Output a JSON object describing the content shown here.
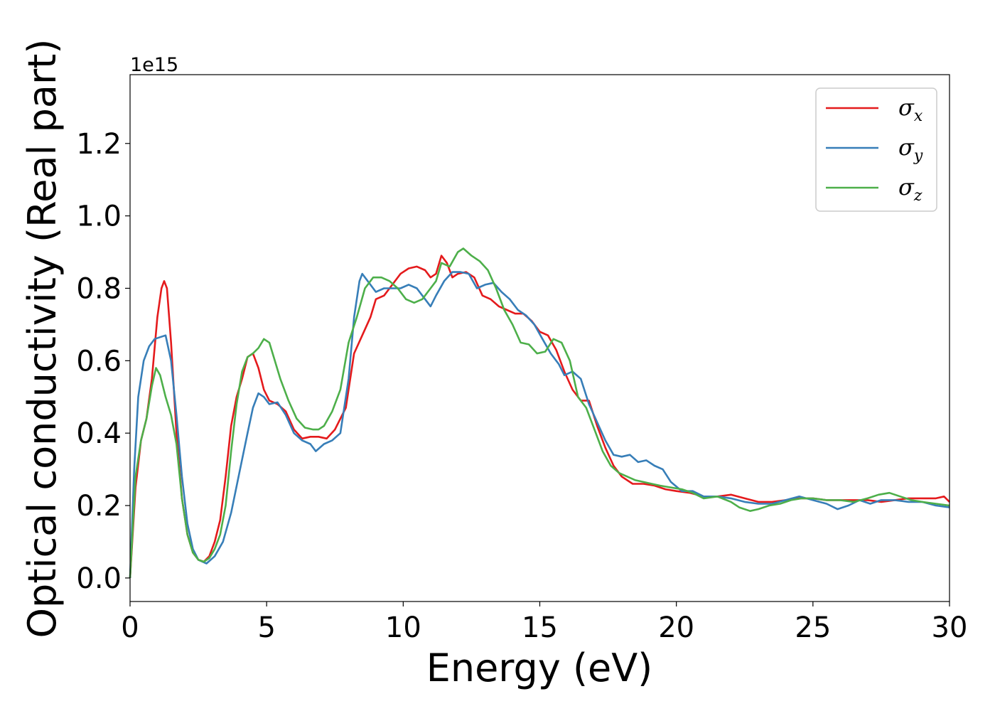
{
  "chart_data": {
    "type": "line",
    "title": "",
    "xlabel": "Energy (eV)",
    "ylabel": "Optical conductivity (Real part)",
    "offset_text": "1e15",
    "xlim": [
      0,
      30
    ],
    "ylim": [
      -0.065,
      1.39
    ],
    "x_ticks": [
      0,
      5,
      10,
      15,
      20,
      25,
      30
    ],
    "y_ticks": [
      0.0,
      0.2,
      0.4,
      0.6,
      0.8,
      1.0,
      1.2
    ],
    "x_tick_labels": [
      "0",
      "5",
      "10",
      "15",
      "20",
      "25",
      "30"
    ],
    "y_tick_labels": [
      "0.0",
      "0.2",
      "0.4",
      "0.6",
      "0.8",
      "1.0",
      "1.2"
    ],
    "grid": false,
    "legend_position": "top-right",
    "series": [
      {
        "name": "σx",
        "symbol": "σ",
        "subscript": "x",
        "color": "#e41a1c",
        "points": [
          [
            0,
            0.0
          ],
          [
            0.2,
            0.25
          ],
          [
            0.4,
            0.38
          ],
          [
            0.6,
            0.44
          ],
          [
            0.8,
            0.55
          ],
          [
            1.0,
            0.72
          ],
          [
            1.15,
            0.8
          ],
          [
            1.25,
            0.82
          ],
          [
            1.35,
            0.8
          ],
          [
            1.5,
            0.65
          ],
          [
            1.7,
            0.4
          ],
          [
            1.9,
            0.22
          ],
          [
            2.1,
            0.12
          ],
          [
            2.3,
            0.07
          ],
          [
            2.5,
            0.05
          ],
          [
            2.7,
            0.045
          ],
          [
            2.9,
            0.06
          ],
          [
            3.1,
            0.1
          ],
          [
            3.3,
            0.16
          ],
          [
            3.5,
            0.28
          ],
          [
            3.7,
            0.42
          ],
          [
            3.9,
            0.5
          ],
          [
            4.1,
            0.55
          ],
          [
            4.3,
            0.61
          ],
          [
            4.5,
            0.62
          ],
          [
            4.7,
            0.58
          ],
          [
            4.9,
            0.52
          ],
          [
            5.1,
            0.49
          ],
          [
            5.4,
            0.48
          ],
          [
            5.7,
            0.46
          ],
          [
            6.0,
            0.41
          ],
          [
            6.3,
            0.385
          ],
          [
            6.6,
            0.39
          ],
          [
            6.9,
            0.39
          ],
          [
            7.2,
            0.385
          ],
          [
            7.5,
            0.41
          ],
          [
            7.9,
            0.47
          ],
          [
            8.2,
            0.62
          ],
          [
            8.5,
            0.67
          ],
          [
            8.8,
            0.72
          ],
          [
            9.0,
            0.77
          ],
          [
            9.3,
            0.78
          ],
          [
            9.6,
            0.81
          ],
          [
            9.9,
            0.84
          ],
          [
            10.2,
            0.855
          ],
          [
            10.5,
            0.86
          ],
          [
            10.8,
            0.85
          ],
          [
            11.0,
            0.83
          ],
          [
            11.2,
            0.84
          ],
          [
            11.4,
            0.89
          ],
          [
            11.6,
            0.87
          ],
          [
            11.8,
            0.83
          ],
          [
            12.0,
            0.84
          ],
          [
            12.3,
            0.845
          ],
          [
            12.6,
            0.83
          ],
          [
            12.9,
            0.78
          ],
          [
            13.2,
            0.77
          ],
          [
            13.5,
            0.75
          ],
          [
            13.8,
            0.74
          ],
          [
            14.1,
            0.73
          ],
          [
            14.4,
            0.73
          ],
          [
            14.7,
            0.71
          ],
          [
            15.0,
            0.68
          ],
          [
            15.3,
            0.67
          ],
          [
            15.6,
            0.63
          ],
          [
            15.9,
            0.57
          ],
          [
            16.2,
            0.52
          ],
          [
            16.5,
            0.49
          ],
          [
            16.8,
            0.49
          ],
          [
            17.1,
            0.42
          ],
          [
            17.4,
            0.36
          ],
          [
            17.7,
            0.31
          ],
          [
            18.0,
            0.28
          ],
          [
            18.4,
            0.26
          ],
          [
            18.8,
            0.26
          ],
          [
            19.2,
            0.255
          ],
          [
            19.6,
            0.245
          ],
          [
            20.0,
            0.24
          ],
          [
            20.5,
            0.235
          ],
          [
            21.0,
            0.225
          ],
          [
            21.5,
            0.225
          ],
          [
            22.0,
            0.23
          ],
          [
            22.5,
            0.22
          ],
          [
            23.0,
            0.21
          ],
          [
            23.5,
            0.21
          ],
          [
            24.0,
            0.215
          ],
          [
            24.5,
            0.22
          ],
          [
            25.0,
            0.22
          ],
          [
            25.5,
            0.215
          ],
          [
            26.0,
            0.215
          ],
          [
            26.5,
            0.215
          ],
          [
            27.0,
            0.215
          ],
          [
            27.5,
            0.21
          ],
          [
            28.0,
            0.215
          ],
          [
            28.5,
            0.22
          ],
          [
            29.0,
            0.22
          ],
          [
            29.5,
            0.22
          ],
          [
            29.8,
            0.225
          ],
          [
            30.0,
            0.21
          ]
        ]
      },
      {
        "name": "σy",
        "symbol": "σ",
        "subscript": "y",
        "color": "#377eb8",
        "points": [
          [
            0,
            0.0
          ],
          [
            0.15,
            0.3
          ],
          [
            0.3,
            0.5
          ],
          [
            0.5,
            0.6
          ],
          [
            0.7,
            0.64
          ],
          [
            0.9,
            0.66
          ],
          [
            1.1,
            0.665
          ],
          [
            1.3,
            0.67
          ],
          [
            1.5,
            0.6
          ],
          [
            1.7,
            0.45
          ],
          [
            1.9,
            0.28
          ],
          [
            2.1,
            0.15
          ],
          [
            2.3,
            0.08
          ],
          [
            2.5,
            0.05
          ],
          [
            2.8,
            0.04
          ],
          [
            3.1,
            0.06
          ],
          [
            3.4,
            0.1
          ],
          [
            3.7,
            0.18
          ],
          [
            4.0,
            0.29
          ],
          [
            4.3,
            0.4
          ],
          [
            4.5,
            0.47
          ],
          [
            4.7,
            0.51
          ],
          [
            4.9,
            0.5
          ],
          [
            5.1,
            0.48
          ],
          [
            5.4,
            0.485
          ],
          [
            5.7,
            0.45
          ],
          [
            6.0,
            0.4
          ],
          [
            6.3,
            0.38
          ],
          [
            6.6,
            0.37
          ],
          [
            6.8,
            0.35
          ],
          [
            7.1,
            0.37
          ],
          [
            7.4,
            0.38
          ],
          [
            7.7,
            0.4
          ],
          [
            8.0,
            0.55
          ],
          [
            8.2,
            0.72
          ],
          [
            8.4,
            0.82
          ],
          [
            8.5,
            0.84
          ],
          [
            8.7,
            0.82
          ],
          [
            9.0,
            0.79
          ],
          [
            9.3,
            0.8
          ],
          [
            9.6,
            0.8
          ],
          [
            9.9,
            0.8
          ],
          [
            10.2,
            0.81
          ],
          [
            10.5,
            0.8
          ],
          [
            10.8,
            0.77
          ],
          [
            11.0,
            0.75
          ],
          [
            11.2,
            0.78
          ],
          [
            11.5,
            0.82
          ],
          [
            11.8,
            0.845
          ],
          [
            12.1,
            0.845
          ],
          [
            12.4,
            0.84
          ],
          [
            12.7,
            0.8
          ],
          [
            13.0,
            0.81
          ],
          [
            13.3,
            0.815
          ],
          [
            13.6,
            0.79
          ],
          [
            13.9,
            0.77
          ],
          [
            14.2,
            0.74
          ],
          [
            14.5,
            0.725
          ],
          [
            14.8,
            0.7
          ],
          [
            15.1,
            0.66
          ],
          [
            15.4,
            0.62
          ],
          [
            15.7,
            0.59
          ],
          [
            15.9,
            0.56
          ],
          [
            16.2,
            0.57
          ],
          [
            16.5,
            0.55
          ],
          [
            16.8,
            0.48
          ],
          [
            17.1,
            0.43
          ],
          [
            17.4,
            0.38
          ],
          [
            17.7,
            0.34
          ],
          [
            18.0,
            0.335
          ],
          [
            18.3,
            0.34
          ],
          [
            18.6,
            0.32
          ],
          [
            18.9,
            0.325
          ],
          [
            19.2,
            0.31
          ],
          [
            19.5,
            0.3
          ],
          [
            19.8,
            0.265
          ],
          [
            20.2,
            0.24
          ],
          [
            20.6,
            0.24
          ],
          [
            21.0,
            0.225
          ],
          [
            21.5,
            0.225
          ],
          [
            22.0,
            0.22
          ],
          [
            22.5,
            0.21
          ],
          [
            23.0,
            0.205
          ],
          [
            23.5,
            0.205
          ],
          [
            24.0,
            0.215
          ],
          [
            24.5,
            0.225
          ],
          [
            25.0,
            0.215
          ],
          [
            25.5,
            0.205
          ],
          [
            25.9,
            0.19
          ],
          [
            26.3,
            0.2
          ],
          [
            26.7,
            0.215
          ],
          [
            27.1,
            0.205
          ],
          [
            27.5,
            0.215
          ],
          [
            28.0,
            0.215
          ],
          [
            28.5,
            0.21
          ],
          [
            29.0,
            0.21
          ],
          [
            29.5,
            0.2
          ],
          [
            30.0,
            0.195
          ]
        ]
      },
      {
        "name": "σz",
        "symbol": "σ",
        "subscript": "z",
        "color": "#4daf4a",
        "points": [
          [
            0,
            0.0
          ],
          [
            0.2,
            0.28
          ],
          [
            0.4,
            0.38
          ],
          [
            0.6,
            0.44
          ],
          [
            0.8,
            0.53
          ],
          [
            0.95,
            0.58
          ],
          [
            1.1,
            0.56
          ],
          [
            1.3,
            0.5
          ],
          [
            1.5,
            0.45
          ],
          [
            1.7,
            0.37
          ],
          [
            1.9,
            0.22
          ],
          [
            2.1,
            0.12
          ],
          [
            2.3,
            0.07
          ],
          [
            2.5,
            0.05
          ],
          [
            2.7,
            0.045
          ],
          [
            2.9,
            0.055
          ],
          [
            3.1,
            0.08
          ],
          [
            3.3,
            0.12
          ],
          [
            3.5,
            0.2
          ],
          [
            3.7,
            0.35
          ],
          [
            3.9,
            0.48
          ],
          [
            4.1,
            0.57
          ],
          [
            4.3,
            0.61
          ],
          [
            4.5,
            0.62
          ],
          [
            4.7,
            0.635
          ],
          [
            4.9,
            0.66
          ],
          [
            5.1,
            0.65
          ],
          [
            5.3,
            0.6
          ],
          [
            5.5,
            0.55
          ],
          [
            5.8,
            0.49
          ],
          [
            6.1,
            0.44
          ],
          [
            6.4,
            0.415
          ],
          [
            6.7,
            0.41
          ],
          [
            6.9,
            0.41
          ],
          [
            7.1,
            0.42
          ],
          [
            7.4,
            0.46
          ],
          [
            7.7,
            0.52
          ],
          [
            8.0,
            0.65
          ],
          [
            8.3,
            0.72
          ],
          [
            8.6,
            0.8
          ],
          [
            8.9,
            0.83
          ],
          [
            9.2,
            0.83
          ],
          [
            9.5,
            0.82
          ],
          [
            9.8,
            0.8
          ],
          [
            10.1,
            0.77
          ],
          [
            10.4,
            0.76
          ],
          [
            10.7,
            0.77
          ],
          [
            11.0,
            0.8
          ],
          [
            11.2,
            0.82
          ],
          [
            11.4,
            0.87
          ],
          [
            11.7,
            0.86
          ],
          [
            12.0,
            0.9
          ],
          [
            12.2,
            0.91
          ],
          [
            12.5,
            0.89
          ],
          [
            12.8,
            0.875
          ],
          [
            13.1,
            0.85
          ],
          [
            13.4,
            0.8
          ],
          [
            13.7,
            0.74
          ],
          [
            14.0,
            0.7
          ],
          [
            14.3,
            0.65
          ],
          [
            14.6,
            0.645
          ],
          [
            14.9,
            0.62
          ],
          [
            15.2,
            0.625
          ],
          [
            15.5,
            0.66
          ],
          [
            15.8,
            0.65
          ],
          [
            16.1,
            0.6
          ],
          [
            16.4,
            0.5
          ],
          [
            16.7,
            0.47
          ],
          [
            17.0,
            0.41
          ],
          [
            17.3,
            0.35
          ],
          [
            17.6,
            0.31
          ],
          [
            17.9,
            0.29
          ],
          [
            18.2,
            0.28
          ],
          [
            18.5,
            0.27
          ],
          [
            18.8,
            0.265
          ],
          [
            19.1,
            0.26
          ],
          [
            19.4,
            0.255
          ],
          [
            19.8,
            0.25
          ],
          [
            20.2,
            0.245
          ],
          [
            20.6,
            0.235
          ],
          [
            21.0,
            0.22
          ],
          [
            21.5,
            0.225
          ],
          [
            22.0,
            0.21
          ],
          [
            22.3,
            0.195
          ],
          [
            22.7,
            0.185
          ],
          [
            23.0,
            0.19
          ],
          [
            23.4,
            0.2
          ],
          [
            23.8,
            0.205
          ],
          [
            24.2,
            0.215
          ],
          [
            24.6,
            0.22
          ],
          [
            25.0,
            0.22
          ],
          [
            25.5,
            0.215
          ],
          [
            26.0,
            0.215
          ],
          [
            26.5,
            0.21
          ],
          [
            27.0,
            0.22
          ],
          [
            27.4,
            0.23
          ],
          [
            27.8,
            0.235
          ],
          [
            28.2,
            0.225
          ],
          [
            28.6,
            0.215
          ],
          [
            29.0,
            0.21
          ],
          [
            29.5,
            0.205
          ],
          [
            30.0,
            0.2
          ]
        ]
      }
    ]
  }
}
